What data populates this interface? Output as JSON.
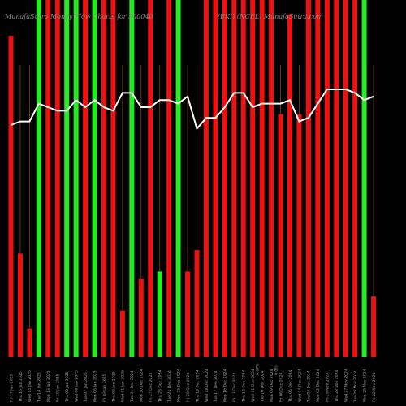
{
  "chart_data": {
    "type": "bar",
    "title_left": "MunafaSutra  Money Flow  Charts for 500040",
    "title_right": "(EKI) (NCEL)  MunafaSutra.com",
    "colors": {
      "background": "#000000",
      "up": "#22ee22",
      "down": "#ee1111",
      "price_line": "#ffffff",
      "gridline": "#7a4a10"
    },
    "grid_vertical": true,
    "ylim": [
      0,
      100
    ],
    "x_labels": [
      "Fri 17 Jan 2025",
      "Thu 16 Jan 2025",
      "Wed 15 Jan 2025",
      "Tue 14 Jan 2025",
      "Mon 13 Jan 2025",
      "Fri 10 Jan 2025",
      "Thu 09 Jan 2025",
      "Wed 08 Jan 2025",
      "Tue 07 Jan 2025",
      "Mon 06 Jan 2025",
      "Fri 03 Jan 2025",
      "Thu 02 Jan 2025",
      "Wed 01 Jan 2025",
      "Tue 31 Dec 2024",
      "Mon 30 Dec 2024",
      "Fri 27 Dec 2024",
      "Thu 26 Dec 2024",
      "Tue 24 Dec 2024",
      "Mon 23 Dec 2024",
      "Fri 20 Dec 2024",
      "Thu 19 Dec 2024",
      "Wed 18 Dec 2024",
      "Tue 17 Dec 2024",
      "Mon 16 Dec 2024",
      "Fri 13 Dec 2024",
      "Thu 12 Dec 2024",
      "Wed 11 Dec 2024",
      "Tue 10 Dec 2024",
      "Mon 09 Dec 2024",
      "Fri 06 Dec 2024",
      "Thu 05 Dec 2024",
      "Wed 04 Dec 2024",
      "Tue 03 Dec 2024",
      "Mon 02 Dec 2024",
      "Fri 29 Nov 2024",
      "Thu 28 Nov 2024",
      "Wed 27 Nov 2024",
      "Tue 26 Nov 2024",
      "Mon 25 Nov 2024",
      "Fri 22 Nov 2024"
    ],
    "annotations": [
      {
        "after_index": 26,
        "text": "6.67%"
      },
      {
        "after_index": 28,
        "text": "0.0%"
      }
    ],
    "series": [
      {
        "values": [
          90,
          29,
          8,
          100,
          100,
          100,
          100,
          100,
          100,
          100,
          100,
          100,
          13,
          100,
          22,
          100,
          24,
          100,
          100,
          24,
          30,
          100,
          100,
          100,
          100,
          100,
          100,
          100,
          100,
          68,
          96,
          68,
          100,
          100,
          100,
          100,
          100,
          100,
          100,
          17
        ],
        "direction": [
          "down",
          "down",
          "down",
          "up",
          "down",
          "down",
          "up",
          "up",
          "down",
          "up",
          "down",
          "down",
          "down",
          "up",
          "down",
          "down",
          "up",
          "down",
          "up",
          "down",
          "down",
          "down",
          "down",
          "down",
          "down",
          "down",
          "down",
          "down",
          "down",
          "down",
          "down",
          "down",
          "down",
          "down",
          "down",
          "down",
          "down",
          "down",
          "up",
          "down"
        ]
      },
      {
        "values": [
          65,
          66,
          66,
          71,
          70,
          69,
          69,
          72,
          70,
          72,
          70,
          69,
          74,
          74,
          70,
          70,
          72,
          72,
          71,
          73,
          64,
          67,
          67,
          70,
          74,
          74,
          70,
          71,
          71,
          71,
          72,
          66,
          67,
          71,
          75,
          75,
          75,
          74,
          72,
          73
        ]
      }
    ]
  }
}
